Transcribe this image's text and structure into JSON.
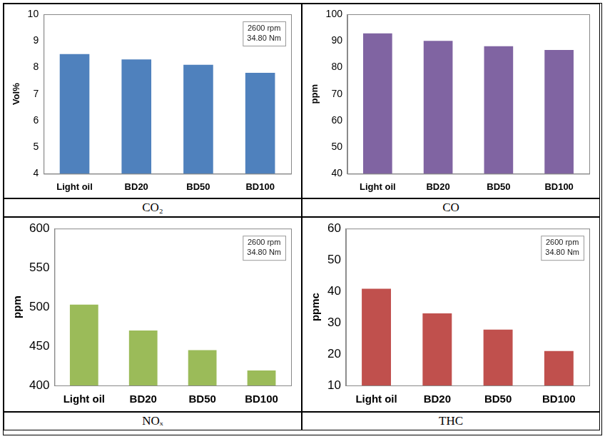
{
  "chart_data": [
    {
      "type": "bar",
      "title": "CO₂",
      "y_label": "Vol%",
      "categories": [
        "Light oil",
        "BD20",
        "BD50",
        "BD100"
      ],
      "values": [
        8.5,
        8.3,
        8.1,
        7.8
      ],
      "color": "#4f81bd",
      "ylim": [
        4,
        10
      ],
      "yticks": [
        4,
        5,
        6,
        7,
        8,
        9,
        10
      ],
      "grid": false,
      "annotations": [
        "2600 rpm",
        "34.80 Nm"
      ]
    },
    {
      "type": "bar",
      "title": "CO",
      "y_label": "ppm",
      "categories": [
        "Light oil",
        "BD20",
        "BD50",
        "BD100"
      ],
      "values": [
        92.8,
        90,
        88,
        86.6
      ],
      "color": "#8064a2",
      "ylim": [
        40,
        100
      ],
      "yticks": [
        40,
        50,
        60,
        70,
        80,
        90,
        100
      ],
      "grid": false
    },
    {
      "type": "bar",
      "title": "NOₓ",
      "y_label": "ppm",
      "categories": [
        "Light oil",
        "BD20",
        "BD50",
        "BD100"
      ],
      "values": [
        503,
        470,
        445,
        419
      ],
      "color": "#9bbb59",
      "ylim": [
        400,
        600
      ],
      "yticks": [
        400,
        450,
        500,
        550,
        600
      ],
      "grid": false,
      "annotations": [
        "2600 rpm",
        "34.80 Nm"
      ]
    },
    {
      "type": "bar",
      "title": "THC",
      "y_label": "ppmc",
      "categories": [
        "Light oil",
        "BD20",
        "BD50",
        "BD100"
      ],
      "values": [
        40.8,
        33,
        27.8,
        21
      ],
      "color": "#c0504d",
      "ylim": [
        10,
        60
      ],
      "yticks": [
        10,
        20,
        30,
        40,
        50,
        60
      ],
      "grid": false,
      "annotations": [
        "2600 rpm",
        "34.80 Nm"
      ]
    }
  ]
}
